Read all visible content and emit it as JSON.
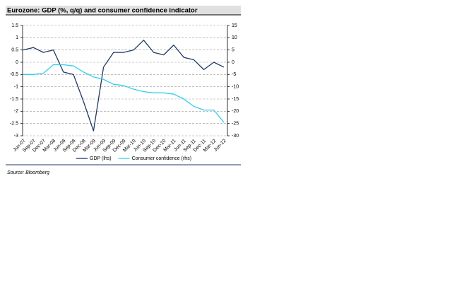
{
  "chart_data": {
    "type": "line",
    "title": "Eurozone: GDP (%, q/q) and consumer confidence indicator",
    "source": "Source: Bloomberg",
    "categories": [
      "Jun-07",
      "Sep-07",
      "Dec-07",
      "Mar-08",
      "Jun-08",
      "Sep-08",
      "Dec-08",
      "Mar-09",
      "Jun-09",
      "Sep-09",
      "Dec-09",
      "Mar-10",
      "Jun-10",
      "Sep-10",
      "Dec-10",
      "Mar-11",
      "Jun-11",
      "Sep-11",
      "Dec-11",
      "Mar-12",
      "Jun-12"
    ],
    "series": [
      {
        "name": "GDP (lhs)",
        "color": "#1f3864",
        "axis": "y",
        "values": [
          0.5,
          0.6,
          0.4,
          0.5,
          -0.4,
          -0.5,
          -1.6,
          -2.8,
          -0.2,
          0.4,
          0.4,
          0.5,
          0.9,
          0.4,
          0.3,
          0.7,
          0.2,
          0.1,
          -0.3,
          0.0,
          -0.2
        ]
      },
      {
        "name": "Consumer confidence (rhs)",
        "color": "#33ccee",
        "axis": "y2",
        "values": [
          -5,
          -5,
          -4.5,
          -1,
          -1,
          -1.5,
          -4,
          -6,
          -7,
          -9,
          -9.5,
          -11,
          -12,
          -12.5,
          -12.5,
          -13,
          -15,
          -18,
          -19.5,
          -19.5,
          -24.5
        ]
      }
    ],
    "ylim": [
      -3,
      1.5
    ],
    "yticks": [
      1.5,
      1,
      0.5,
      0,
      -0.5,
      -1,
      -1.5,
      -2,
      -2.5,
      -3
    ],
    "y2lim": [
      -30,
      15
    ],
    "y2ticks": [
      15,
      10,
      5,
      0,
      -5,
      -10,
      -15,
      -20,
      -25,
      -30
    ],
    "grid": true
  }
}
